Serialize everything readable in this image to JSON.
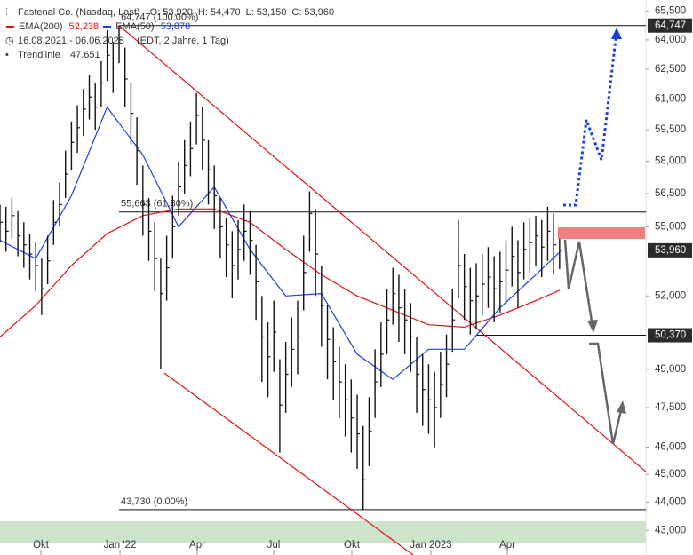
{
  "header": {
    "title": "Fastenal Co. (Nasdaq, Last)",
    "ohlc": [
      {
        "label": "O:",
        "value": "53,920"
      },
      {
        "label": "H:",
        "value": "54,470"
      },
      {
        "label": "L:",
        "value": "53,150"
      },
      {
        "label": "C:",
        "value": "53,960"
      }
    ],
    "period": "16.08.2021 - 06.06.2023",
    "period_note": "(EDT, 2 Jahre, 1 Tag)",
    "trend_name": "Trendlinie",
    "trend_value": "47.651"
  },
  "chart_data": {
    "type": "stock",
    "log_scale": true,
    "xlim": [
      0,
      108.5
    ],
    "ylim": [
      42150,
      66100
    ],
    "xticks": [
      {
        "value": 6.87,
        "label": "Okt"
      },
      {
        "value": 20.15,
        "label": "Jan '22"
      },
      {
        "value": 33.13,
        "label": "Apr"
      },
      {
        "value": 45.97,
        "label": "Jul"
      },
      {
        "value": 59.1,
        "label": "Okt"
      },
      {
        "value": 72.38,
        "label": "Jan 2023"
      },
      {
        "value": 85.22,
        "label": "Apr"
      }
    ],
    "yticks": [
      {
        "value": 65500,
        "label": "65,500"
      },
      {
        "value": 64000,
        "label": "64,000"
      },
      {
        "value": 62500,
        "label": "62,500"
      },
      {
        "value": 61000,
        "label": "61,000"
      },
      {
        "value": 59500,
        "label": "59,500"
      },
      {
        "value": 58000,
        "label": "58,000"
      },
      {
        "value": 56500,
        "label": "56,500"
      },
      {
        "value": 55000,
        "label": "55,000"
      },
      {
        "value": 52000,
        "label": "52,000"
      },
      {
        "value": 49000,
        "label": "49,000"
      },
      {
        "value": 47500,
        "label": "47,500"
      },
      {
        "value": 46000,
        "label": "46,000"
      },
      {
        "value": 45000,
        "label": "45,000"
      },
      {
        "value": 44000,
        "label": "44,000"
      },
      {
        "value": 43000,
        "label": "43,000"
      }
    ],
    "bar_color": "#111111",
    "high": [
      56000,
      55900,
      56300,
      55700,
      55200,
      54700,
      54300,
      53600,
      54600,
      56200,
      57000,
      58500,
      59900,
      60700,
      61500,
      62200,
      61800,
      62900,
      64500,
      63900,
      64747,
      63600,
      61800,
      60100,
      57800,
      56300,
      55200,
      53600,
      54600,
      56400,
      58000,
      59000,
      59900,
      61300,
      60600,
      59000,
      57800,
      56300,
      55400,
      54800,
      55300,
      56000,
      55700,
      54200,
      52000,
      50900,
      51800,
      49400,
      50100,
      51100,
      51800,
      54600,
      56600,
      55800,
      53300,
      51600,
      50700,
      49900,
      49200,
      48600,
      48000,
      46800,
      47900,
      49800,
      50900,
      52300,
      53200,
      52900,
      52300,
      51700,
      50300,
      49600,
      49200,
      48900,
      49700,
      50400,
      52300,
      55300,
      53800,
      53200,
      53400,
      53800,
      54100,
      53700,
      53900,
      54400,
      55000,
      54400,
      55200,
      55400,
      55500,
      55300,
      55900,
      55600,
      54470
    ],
    "low": [
      54300,
      53900,
      54500,
      53700,
      53200,
      52700,
      52200,
      51200,
      52500,
      54200,
      55000,
      56300,
      57600,
      58400,
      59200,
      60000,
      59500,
      60600,
      61900,
      61300,
      62800,
      60600,
      58800,
      56900,
      54600,
      53500,
      52200,
      49000,
      51800,
      53600,
      55500,
      56500,
      57300,
      58800,
      57600,
      56000,
      54900,
      53600,
      52800,
      51900,
      52700,
      53500,
      52900,
      51000,
      48500,
      47900,
      48900,
      45800,
      47300,
      48300,
      48800,
      51400,
      53900,
      52000,
      49900,
      48600,
      47800,
      47100,
      46400,
      45800,
      45200,
      43730,
      45300,
      47100,
      48300,
      49600,
      50800,
      50100,
      49600,
      48900,
      47300,
      46800,
      46500,
      46000,
      47100,
      47900,
      49700,
      51900,
      51000,
      50400,
      50600,
      51200,
      51500,
      50900,
      51300,
      51700,
      52400,
      51500,
      52700,
      53000,
      53300,
      52800,
      53500,
      52900,
      53150
    ],
    "close": [
      55200,
      54800,
      55500,
      54600,
      54200,
      53800,
      53300,
      52300,
      53500,
      55200,
      56000,
      57400,
      58900,
      59600,
      60500,
      61100,
      60600,
      61800,
      63200,
      62600,
      64000,
      62000,
      60300,
      58500,
      56000,
      54800,
      53600,
      52100,
      53200,
      55000,
      56800,
      57800,
      58600,
      60200,
      59000,
      57600,
      56400,
      55000,
      54200,
      53300,
      54000,
      54800,
      54400,
      52600,
      50300,
      49500,
      50500,
      47600,
      48800,
      49800,
      50300,
      53000,
      55600,
      53800,
      51600,
      50200,
      49300,
      48500,
      47800,
      47100,
      46500,
      44800,
      46600,
      48500,
      49600,
      51000,
      52100,
      51500,
      51000,
      50300,
      48800,
      48200,
      47800,
      47500,
      48400,
      49200,
      51000,
      53300,
      52400,
      51800,
      52000,
      52500,
      52800,
      52300,
      52600,
      53100,
      53700,
      53000,
      54000,
      54300,
      54600,
      54100,
      54800,
      54200,
      53960
    ],
    "series": [
      {
        "name": "EMA(200)",
        "color": "#e01010",
        "last_label": "52,238",
        "x": [
          0,
          6,
          12,
          18,
          24,
          30,
          36,
          42,
          48,
          54,
          60,
          66,
          72,
          78,
          84,
          90,
          94
        ],
        "values": [
          50300,
          51600,
          53300,
          54700,
          55500,
          55800,
          55800,
          55200,
          54000,
          52900,
          52000,
          51400,
          50800,
          50700,
          51200,
          51800,
          52238
        ]
      },
      {
        "name": "EMA(50)",
        "color": "#1a3fe0",
        "last_label": "53,878",
        "x": [
          0,
          6,
          12,
          18,
          24,
          30,
          36,
          42,
          48,
          54,
          60,
          66,
          72,
          78,
          84,
          90,
          94
        ],
        "values": [
          54400,
          53600,
          56400,
          60600,
          58300,
          55000,
          56800,
          54000,
          52000,
          52100,
          49600,
          48600,
          49800,
          49800,
          51500,
          52900,
          53878
        ]
      }
    ],
    "levels": [
      {
        "value": 64747,
        "axis_label": "64,747",
        "text": "64,747 (100.00%)",
        "from": 20
      },
      {
        "value": 55663,
        "text": "55,663 (61.80%)",
        "from": 20
      },
      {
        "value": 50370,
        "axis_label": "50,370",
        "from": 80
      },
      {
        "value": 43730,
        "text": "43,730 (0.00%)",
        "from": 20
      }
    ],
    "last_price": {
      "value": 53960,
      "label": "53,960"
    },
    "trendlines": [
      {
        "color": "#e01010",
        "points": [
          [
            20,
            64747
          ],
          [
            108.5,
            45100
          ]
        ]
      },
      {
        "color": "#e01010",
        "points": [
          [
            27.6,
            48850
          ],
          [
            69.4,
            42150
          ]
        ]
      }
    ]
  }
}
